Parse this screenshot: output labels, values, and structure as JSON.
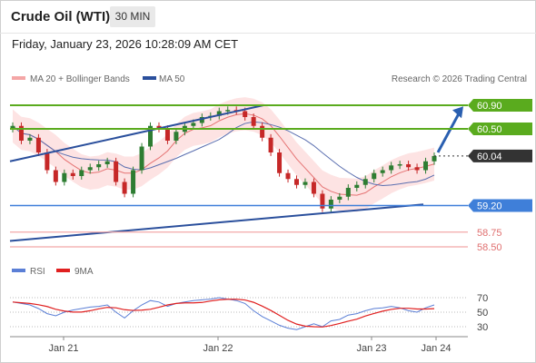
{
  "header": {
    "instrument": "Crude Oil (WTI)",
    "timeframe": "30 MIN",
    "datetime": "Friday, January 23, 2026 10:28:09 AM CET"
  },
  "legend": {
    "bollinger_label": "MA 20 + Bollinger Bands",
    "ma50_label": "MA 50",
    "copyright": "Research © 2026 Trading Central",
    "rsi_label": "RSI",
    "rsi_ma_label": "9MA"
  },
  "colors": {
    "resistance": "#5aab1e",
    "support": "#3f7fd9",
    "current": "#333333",
    "target_low": "#e07070",
    "trendline": "#2a4f9c",
    "bollinger_fill": "#fde0e0",
    "ma20": "#e57373",
    "ma50": "#5b6fb0",
    "candle_up": "#2e7d32",
    "candle_down": "#c62828",
    "rsi": "#5b7fd6",
    "rsi_ma": "#e02020"
  },
  "chart_data": {
    "type": "candlestick",
    "title": "Crude Oil (WTI)",
    "timeframe": "30 MIN",
    "x_labels": [
      "Jan 21",
      "Jan 22",
      "Jan 23",
      "Jan 24"
    ],
    "ylim": [
      58.3,
      61.1
    ],
    "levels": [
      {
        "value": 60.9,
        "label": "60.90",
        "kind": "resistance"
      },
      {
        "value": 60.5,
        "label": "60.50",
        "kind": "resistance"
      },
      {
        "value": 60.04,
        "label": "60.04",
        "kind": "current"
      },
      {
        "value": 59.2,
        "label": "59.20",
        "kind": "support"
      },
      {
        "value": 58.75,
        "label": "58.75",
        "kind": "target"
      },
      {
        "value": 58.5,
        "label": "58.50",
        "kind": "target"
      }
    ],
    "close_series": [
      60.55,
      60.3,
      60.35,
      60.1,
      59.8,
      59.6,
      59.75,
      59.7,
      59.8,
      59.85,
      59.9,
      59.95,
      59.6,
      59.4,
      59.8,
      60.2,
      60.55,
      60.5,
      60.3,
      60.45,
      60.55,
      60.6,
      60.7,
      60.72,
      60.8,
      60.82,
      60.8,
      60.7,
      60.55,
      60.35,
      60.1,
      59.75,
      59.65,
      59.55,
      59.6,
      59.4,
      59.15,
      59.3,
      59.35,
      59.5,
      59.55,
      59.65,
      59.75,
      59.8,
      59.88,
      59.9,
      59.85,
      59.8,
      59.95,
      60.04
    ],
    "rsi": {
      "levels": [
        70,
        50,
        30
      ],
      "values": [
        64,
        62,
        60,
        55,
        48,
        45,
        50,
        53,
        55,
        57,
        58,
        60,
        50,
        42,
        52,
        60,
        66,
        64,
        58,
        62,
        64,
        66,
        67,
        68,
        70,
        68,
        66,
        62,
        52,
        44,
        38,
        32,
        28,
        26,
        30,
        34,
        30,
        38,
        40,
        46,
        48,
        52,
        55,
        56,
        58,
        56,
        52,
        50,
        56,
        60
      ]
    }
  }
}
